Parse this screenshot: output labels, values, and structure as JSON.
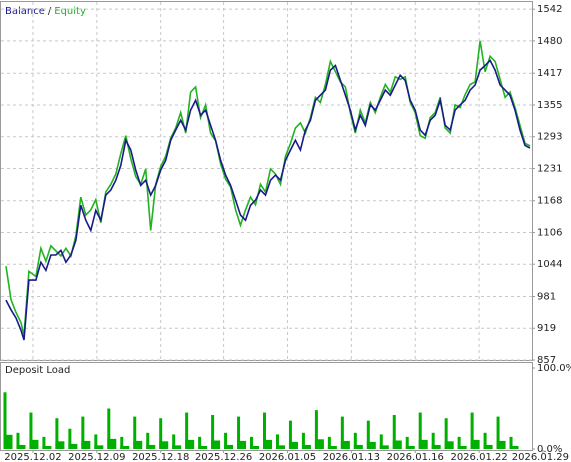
{
  "chart_data": [
    {
      "type": "line",
      "legend_separator": "/",
      "xlim": [
        0,
        532
      ],
      "xticks": [
        32,
        96,
        160,
        223,
        287,
        351,
        415,
        479,
        543
      ],
      "ylim": [
        857,
        1556
      ],
      "yticks": [
        857,
        919,
        981,
        1044,
        1106,
        1168,
        1231,
        1293,
        1355,
        1417,
        1480,
        1542
      ],
      "grid": true,
      "x": [
        5,
        10,
        15,
        20,
        23,
        28,
        35,
        40,
        45,
        50,
        55,
        60,
        65,
        70,
        75,
        80,
        85,
        90,
        95,
        100,
        105,
        110,
        115,
        120,
        125,
        130,
        135,
        140,
        145,
        150,
        155,
        160,
        165,
        170,
        175,
        180,
        185,
        190,
        195,
        200,
        205,
        210,
        215,
        220,
        225,
        230,
        235,
        240,
        245,
        250,
        255,
        260,
        265,
        270,
        275,
        280,
        285,
        290,
        295,
        300,
        305,
        310,
        315,
        320,
        325,
        330,
        335,
        340,
        345,
        350,
        355,
        360,
        365,
        370,
        375,
        380,
        385,
        390,
        395,
        400,
        405,
        410,
        415,
        420,
        425,
        430,
        435,
        440,
        445,
        450,
        455,
        460,
        465,
        470,
        475,
        480,
        485,
        490,
        495,
        500,
        505,
        510,
        515,
        520,
        525,
        530
      ],
      "series": [
        {
          "name": "Balance",
          "color": "#1a1a8c",
          "values": [
            974,
            955,
            939,
            915,
            896,
            1013,
            1013,
            1048,
            1032,
            1062,
            1062,
            1071,
            1048,
            1062,
            1091,
            1159,
            1130,
            1110,
            1149,
            1130,
            1179,
            1189,
            1208,
            1237,
            1286,
            1267,
            1228,
            1198,
            1208,
            1179,
            1198,
            1228,
            1247,
            1286,
            1306,
            1325,
            1306,
            1345,
            1364,
            1335,
            1345,
            1315,
            1286,
            1247,
            1218,
            1198,
            1169,
            1140,
            1130,
            1159,
            1169,
            1189,
            1179,
            1208,
            1218,
            1208,
            1247,
            1267,
            1286,
            1267,
            1306,
            1325,
            1364,
            1374,
            1384,
            1423,
            1432,
            1403,
            1374,
            1345,
            1306,
            1335,
            1315,
            1355,
            1345,
            1364,
            1384,
            1374,
            1394,
            1413,
            1403,
            1364,
            1345,
            1306,
            1296,
            1325,
            1335,
            1364,
            1315,
            1306,
            1345,
            1355,
            1364,
            1384,
            1394,
            1423,
            1432,
            1442,
            1423,
            1394,
            1384,
            1374,
            1345,
            1306,
            1276,
            1271
          ]
        },
        {
          "name": "Equity",
          "color": "#22b222",
          "values": [
            1040,
            975,
            950,
            930,
            905,
            1030,
            1020,
            1075,
            1050,
            1080,
            1070,
            1060,
            1075,
            1060,
            1100,
            1175,
            1140,
            1150,
            1170,
            1125,
            1185,
            1200,
            1220,
            1260,
            1295,
            1250,
            1215,
            1200,
            1230,
            1110,
            1200,
            1235,
            1255,
            1290,
            1310,
            1340,
            1300,
            1380,
            1390,
            1330,
            1355,
            1300,
            1285,
            1240,
            1210,
            1195,
            1150,
            1120,
            1150,
            1175,
            1160,
            1200,
            1185,
            1230,
            1220,
            1200,
            1255,
            1280,
            1310,
            1320,
            1300,
            1330,
            1370,
            1360,
            1395,
            1440,
            1420,
            1400,
            1390,
            1340,
            1300,
            1345,
            1320,
            1360,
            1340,
            1370,
            1395,
            1380,
            1410,
            1405,
            1410,
            1360,
            1340,
            1295,
            1290,
            1330,
            1340,
            1370,
            1310,
            1300,
            1355,
            1350,
            1375,
            1395,
            1400,
            1480,
            1420,
            1450,
            1440,
            1405,
            1370,
            1380,
            1350,
            1315,
            1280,
            1275
          ]
        }
      ]
    },
    {
      "type": "bar",
      "title": "Deposit Load",
      "color": "#00b000",
      "xlim": [
        0,
        532
      ],
      "xticks": [
        {
          "value": 32,
          "label": "2025.12.02"
        },
        {
          "value": 96,
          "label": "2025.12.09"
        },
        {
          "value": 160,
          "label": "2025.12.18"
        },
        {
          "value": 223,
          "label": "2025.12.26"
        },
        {
          "value": 287,
          "label": "2026.01.05"
        },
        {
          "value": 351,
          "label": "2026.01.13"
        },
        {
          "value": 415,
          "label": "2026.01.16"
        },
        {
          "value": 479,
          "label": "2026.01.22"
        },
        {
          "value": 543,
          "label": "2026.01.29"
        }
      ],
      "ylim": [
        0,
        100
      ],
      "yticks": [
        {
          "value": 0,
          "label": "0.0%"
        },
        {
          "value": 100,
          "label": "100.0%"
        }
      ],
      "x": [
        4,
        17,
        30,
        43,
        56,
        69,
        82,
        95,
        108,
        121,
        134,
        147,
        160,
        173,
        186,
        199,
        212,
        225,
        238,
        251,
        264,
        277,
        290,
        303,
        316,
        329,
        342,
        355,
        368,
        381,
        394,
        407,
        420,
        433,
        446,
        459,
        472,
        485,
        498,
        511
      ],
      "values": [
        70,
        20,
        45,
        15,
        38,
        25,
        40,
        18,
        50,
        15,
        40,
        20,
        38,
        18,
        45,
        15,
        42,
        20,
        40,
        15,
        45,
        18,
        35,
        20,
        48,
        15,
        40,
        20,
        35,
        18,
        42,
        15,
        45,
        20,
        38,
        15,
        45,
        20,
        40,
        15
      ]
    }
  ]
}
